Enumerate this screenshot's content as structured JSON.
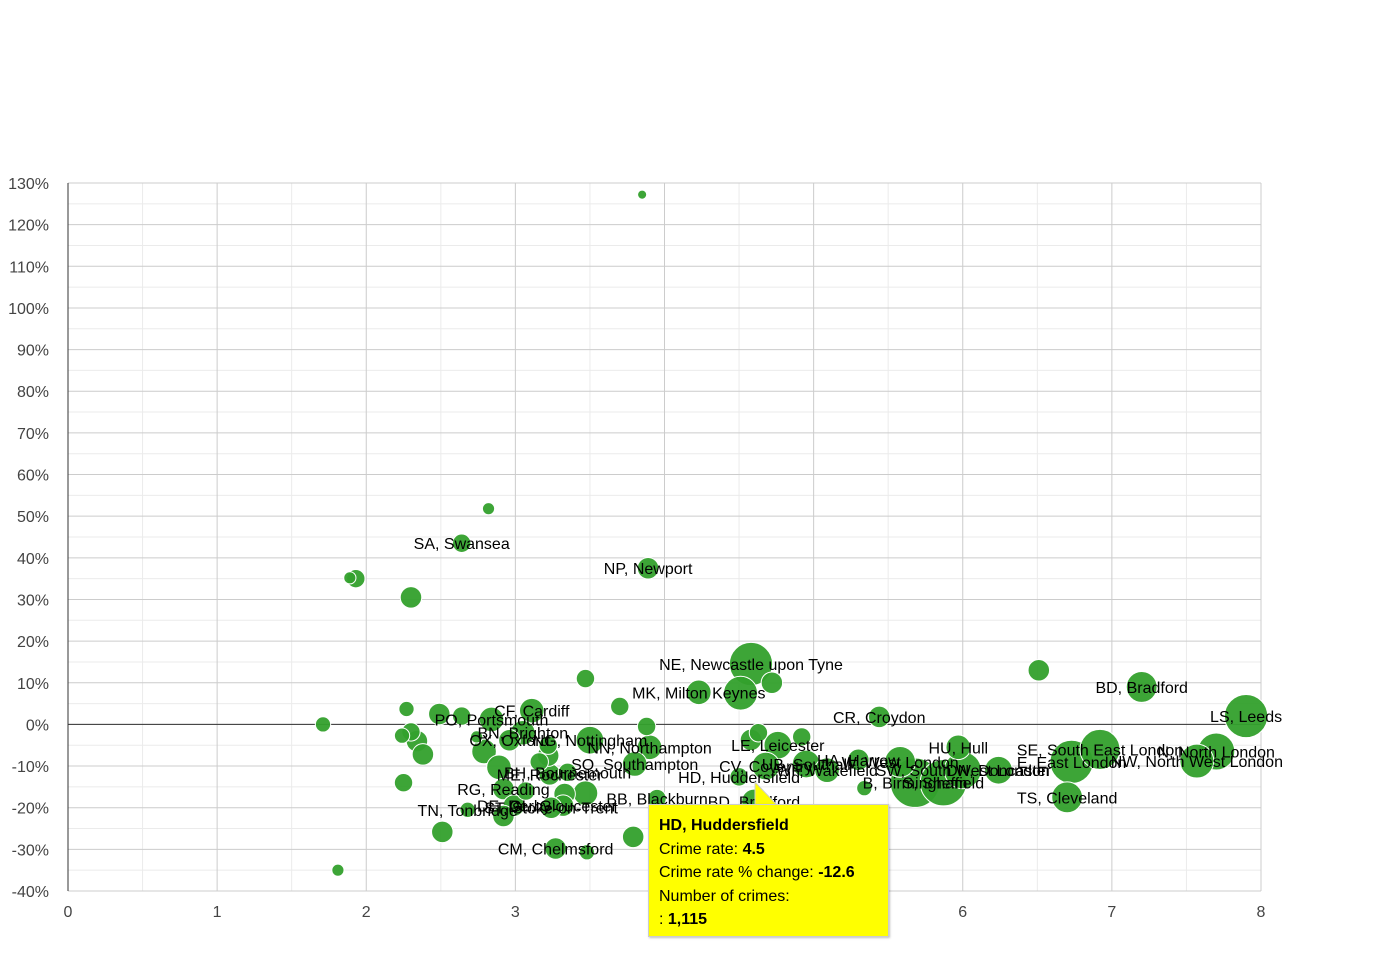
{
  "chart_data": {
    "type": "scatter",
    "title": "",
    "xlabel": "",
    "ylabel": "",
    "xlim": [
      0,
      8
    ],
    "ylim": [
      -40,
      130
    ],
    "x_ticks": [
      "0",
      "1",
      "2",
      "3",
      "",
      "",
      "6",
      "7",
      "8"
    ],
    "y_ticks": [
      "130%",
      "120%",
      "110%",
      "100%",
      "90%",
      "80%",
      "70%",
      "60%",
      "50%",
      "40%",
      "30%",
      "20%",
      "10%",
      "0%",
      "-10%",
      "-20%",
      "-30%",
      "-40%"
    ],
    "colors": {
      "point": "#33a02c",
      "point_stroke": "#ffffff",
      "grid_major": "#cccccc",
      "grid_minor": "#ebebeb",
      "zero_line": "#333333",
      "tooltip_bg": "#ffff00"
    },
    "points": [
      {
        "label": "",
        "x": 3.85,
        "y": 127.2,
        "size": 1
      },
      {
        "label": "",
        "x": 2.82,
        "y": 51.8,
        "size": 2
      },
      {
        "label": "SA, Swansea",
        "x": 2.64,
        "y": 43.5,
        "size": 4
      },
      {
        "label": "",
        "x": 1.89,
        "y": 35.2,
        "size": 2
      },
      {
        "label": "",
        "x": 1.93,
        "y": 35.0,
        "size": 4
      },
      {
        "label": "",
        "x": 2.3,
        "y": 30.5,
        "size": 5
      },
      {
        "label": "NP, Newport",
        "x": 3.89,
        "y": 37.5,
        "size": 5
      },
      {
        "label": "NE, Newcastle upon Tyne",
        "x": 4.58,
        "y": 14.5,
        "size": 12
      },
      {
        "label": "",
        "x": 4.51,
        "y": 7.5,
        "size": 9
      },
      {
        "label": "MK, Milton Keynes",
        "x": 4.23,
        "y": 7.7,
        "size": 6
      },
      {
        "label": "",
        "x": 4.72,
        "y": 10.0,
        "size": 5
      },
      {
        "label": "",
        "x": 3.47,
        "y": 11.0,
        "size": 4
      },
      {
        "label": "",
        "x": 3.7,
        "y": 4.3,
        "size": 4
      },
      {
        "label": "",
        "x": 1.71,
        "y": 0.0,
        "size": 3
      },
      {
        "label": "",
        "x": 2.27,
        "y": 3.7,
        "size": 3
      },
      {
        "label": "",
        "x": 2.49,
        "y": 2.5,
        "size": 5
      },
      {
        "label": "",
        "x": 2.64,
        "y": 2.0,
        "size": 4
      },
      {
        "label": "PO, Portsmouth",
        "x": 2.84,
        "y": 1.2,
        "size": 6
      },
      {
        "label": "CF, Cardiff",
        "x": 3.11,
        "y": 3.3,
        "size": 6
      },
      {
        "label": "BN, Brighton",
        "x": 3.05,
        "y": -2.0,
        "size": 6
      },
      {
        "label": "OX, Oxford",
        "x": 2.96,
        "y": -3.8,
        "size": 5
      },
      {
        "label": "NG, Nottingham",
        "x": 3.5,
        "y": -3.8,
        "size": 7
      },
      {
        "label": "",
        "x": 3.88,
        "y": -0.5,
        "size": 4
      },
      {
        "label": "",
        "x": 2.24,
        "y": -2.7,
        "size": 3
      },
      {
        "label": "",
        "x": 2.34,
        "y": -4.0,
        "size": 5
      },
      {
        "label": "",
        "x": 2.38,
        "y": -7.2,
        "size": 5
      },
      {
        "label": "",
        "x": 2.3,
        "y": -1.8,
        "size": 4
      },
      {
        "label": "",
        "x": 2.74,
        "y": -3.0,
        "size": 2
      },
      {
        "label": "",
        "x": 2.79,
        "y": -6.5,
        "size": 6
      },
      {
        "label": "",
        "x": 2.89,
        "y": -10.3,
        "size": 6
      },
      {
        "label": "NN, Northampton",
        "x": 3.9,
        "y": -5.5,
        "size": 6
      },
      {
        "label": "SO, Southampton",
        "x": 3.8,
        "y": -9.5,
        "size": 6
      },
      {
        "label": "LE, Leicester",
        "x": 4.76,
        "y": -5.0,
        "size": 7
      },
      {
        "label": "",
        "x": 4.63,
        "y": -2.0,
        "size": 4
      },
      {
        "label": "",
        "x": 4.58,
        "y": -3.7,
        "size": 5
      },
      {
        "label": "",
        "x": 4.92,
        "y": -3.0,
        "size": 4
      },
      {
        "label": "UB, Southall",
        "x": 4.95,
        "y": -9.5,
        "size": 7
      },
      {
        "label": "CV, Coventry",
        "x": 4.68,
        "y": -10.0,
        "size": 7
      },
      {
        "label": "HA, Harrow",
        "x": 5.3,
        "y": -8.5,
        "size": 5
      },
      {
        "label": "WF, Wakefield",
        "x": 5.09,
        "y": -11.0,
        "size": 6
      },
      {
        "label": "W, West London",
        "x": 5.58,
        "y": -9.0,
        "size": 8
      },
      {
        "label": "CR, Croydon",
        "x": 5.44,
        "y": 1.8,
        "size": 5
      },
      {
        "label": "HU, Hull",
        "x": 5.97,
        "y": -5.5,
        "size": 6
      },
      {
        "label": "B, Birmingham",
        "x": 5.68,
        "y": -14.0,
        "size": 14
      },
      {
        "label": "S, Sheffield",
        "x": 5.87,
        "y": -14.0,
        "size": 13
      },
      {
        "label": "SW, South West London",
        "x": 6.0,
        "y": -11.0,
        "size": 10
      },
      {
        "label": "DN, Doncaster",
        "x": 6.24,
        "y": -11.0,
        "size": 7
      },
      {
        "label": "",
        "x": 5.34,
        "y": -15.3,
        "size": 3
      },
      {
        "label": "E, East London",
        "x": 6.73,
        "y": -9.0,
        "size": 12
      },
      {
        "label": "SE, South East London",
        "x": 6.92,
        "y": -6.0,
        "size": 11
      },
      {
        "label": "N, North London",
        "x": 7.7,
        "y": -6.5,
        "size": 10
      },
      {
        "label": "NW, North West London",
        "x": 7.57,
        "y": -8.8,
        "size": 9
      },
      {
        "label": "TS, Cleveland",
        "x": 6.7,
        "y": -17.5,
        "size": 8
      },
      {
        "label": "",
        "x": 6.51,
        "y": 13.0,
        "size": 5
      },
      {
        "label": "BD, Bradford",
        "x": 7.2,
        "y": 9.0,
        "size": 8
      },
      {
        "label": "LS, Leeds",
        "x": 7.9,
        "y": 2.0,
        "size": 12
      },
      {
        "label": "HD, Huddersfield",
        "x": 4.5,
        "y": -12.6,
        "size": 4
      },
      {
        "label": "BB, Blackburn",
        "x": 3.95,
        "y": -17.8,
        "size": 4
      },
      {
        "label": "BD, Bradford",
        "x": 4.6,
        "y": -18.5,
        "size": 6
      },
      {
        "label": "",
        "x": 3.79,
        "y": -27.0,
        "size": 5
      },
      {
        "label": "ME, Rochester",
        "x": 3.23,
        "y": -12.0,
        "size": 5
      },
      {
        "label": "BH, Bournemouth",
        "x": 3.35,
        "y": -11.5,
        "size": 4
      },
      {
        "label": "RG, Reading",
        "x": 2.92,
        "y": -15.5,
        "size": 5
      },
      {
        "label": "",
        "x": 3.16,
        "y": -9.0,
        "size": 4
      },
      {
        "label": "",
        "x": 3.22,
        "y": -5.0,
        "size": 4
      },
      {
        "label": "",
        "x": 3.22,
        "y": -7.5,
        "size": 5
      },
      {
        "label": "",
        "x": 3.07,
        "y": -16.0,
        "size": 4
      },
      {
        "label": "",
        "x": 3.47,
        "y": -16.5,
        "size": 6
      },
      {
        "label": "",
        "x": 3.33,
        "y": -16.7,
        "size": 5
      },
      {
        "label": "DE, Derby",
        "x": 2.99,
        "y": -19.5,
        "size": 5
      },
      {
        "label": "GL, Gloucester",
        "x": 3.32,
        "y": -19.5,
        "size": 5
      },
      {
        "label": "ST, Stoke-on-Trent",
        "x": 3.24,
        "y": -20.0,
        "size": 5
      },
      {
        "label": "TN, Tonbridge",
        "x": 2.68,
        "y": -20.5,
        "size": 3
      },
      {
        "label": "",
        "x": 2.92,
        "y": -22.0,
        "size": 5
      },
      {
        "label": "",
        "x": 2.25,
        "y": -14.0,
        "size": 4
      },
      {
        "label": "",
        "x": 2.51,
        "y": -25.8,
        "size": 5
      },
      {
        "label": "CM, Chelmsford",
        "x": 3.27,
        "y": -29.8,
        "size": 5
      },
      {
        "label": "",
        "x": 3.48,
        "y": -30.7,
        "size": 3
      },
      {
        "label": "",
        "x": 1.81,
        "y": -35.0,
        "size": 2
      }
    ]
  },
  "tooltip": {
    "title": "HD, Huddersfield",
    "rate_label": "Crime rate: ",
    "rate_value": "4.5",
    "change_label": "Crime rate % change: ",
    "change_value": "-12.6",
    "count_label": "Number of crimes:",
    "count_prefix": ": ",
    "count_value": "1,115"
  }
}
